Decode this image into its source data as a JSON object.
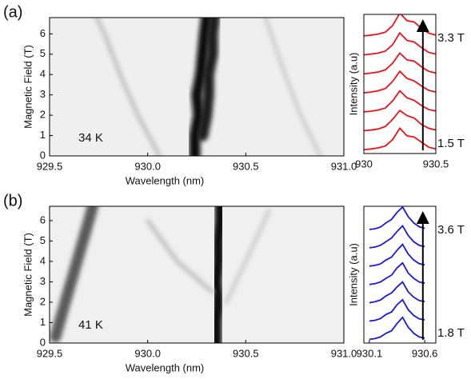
{
  "chart_data": [
    {
      "type": "heatmap",
      "panel_label": "(a)",
      "annotation": "34 K",
      "xlabel": "Wavelength (nm)",
      "ylabel": "Magnetic Field (T)",
      "xlim": [
        929.5,
        931.0
      ],
      "ylim": [
        0,
        6.8
      ],
      "xticks": [
        929.5,
        {
          "value": 930,
          "label": "930.0"
        },
        930.5,
        {
          "value": 931,
          "label": "931.0"
        }
      ],
      "yticks": [
        0,
        1,
        2,
        3,
        4,
        5,
        6
      ],
      "background": "#efefef",
      "traces": [
        {
          "color": "#0d0d0d",
          "y": [
            0,
            1,
            2,
            3,
            4,
            5,
            6,
            6.8
          ],
          "x": [
            930.24,
            930.24,
            930.26,
            930.25,
            930.27,
            930.28,
            930.29,
            930.3
          ]
        },
        {
          "color": "#1e1e1e",
          "y": [
            1,
            2,
            3,
            4,
            5,
            6,
            6.8
          ],
          "x": [
            930.28,
            930.3,
            930.31,
            930.31,
            930.33,
            930.33,
            930.34
          ]
        },
        {
          "color": "#bdbdbd",
          "y": [
            0,
            2,
            4,
            6,
            6.8
          ],
          "x": [
            930.06,
            929.95,
            929.86,
            929.78,
            929.74
          ]
        },
        {
          "color": "#cccccc",
          "y": [
            0,
            2,
            4,
            6,
            6.8
          ],
          "x": [
            930.88,
            930.78,
            930.7,
            930.63,
            930.6
          ]
        }
      ]
    },
    {
      "type": "spectra",
      "ylabel": "Intensity (a.u)",
      "annotations": [
        "3.3 T",
        "1.5 T"
      ],
      "xlim": [
        930,
        930.5
      ],
      "ylim": [
        0,
        5.5
      ],
      "xticks": [
        930,
        930.5
      ],
      "x": [
        930.0,
        930.05,
        930.1,
        930.15,
        930.2,
        930.25,
        930.3,
        930.35,
        930.4,
        930.45,
        930.5
      ],
      "series": [
        {
          "color": "#e8141a",
          "values": [
            0.05,
            0.08,
            0.12,
            0.2,
            0.45,
            0.9,
            0.6,
            0.55,
            0.35,
            0.15,
            0.08
          ]
        },
        {
          "color": "#e8141a",
          "values": [
            0.05,
            0.08,
            0.12,
            0.22,
            0.5,
            0.85,
            0.65,
            0.55,
            0.3,
            0.15,
            0.08
          ]
        },
        {
          "color": "#e8141a",
          "values": [
            0.05,
            0.07,
            0.12,
            0.2,
            0.48,
            0.88,
            0.6,
            0.5,
            0.3,
            0.14,
            0.08
          ]
        },
        {
          "color": "#e8141a",
          "values": [
            0.05,
            0.08,
            0.13,
            0.22,
            0.5,
            0.9,
            0.62,
            0.52,
            0.32,
            0.15,
            0.08
          ]
        },
        {
          "color": "#e8141a",
          "values": [
            0.05,
            0.08,
            0.12,
            0.21,
            0.47,
            0.87,
            0.6,
            0.55,
            0.33,
            0.15,
            0.08
          ]
        },
        {
          "color": "#e8141a",
          "values": [
            0.05,
            0.08,
            0.12,
            0.2,
            0.45,
            0.92,
            0.62,
            0.56,
            0.34,
            0.15,
            0.08
          ]
        },
        {
          "color": "#e8141a",
          "values": [
            0.05,
            0.08,
            0.12,
            0.2,
            0.46,
            0.95,
            0.65,
            0.6,
            0.35,
            0.16,
            0.08
          ]
        }
      ]
    },
    {
      "type": "heatmap",
      "panel_label": "(b)",
      "annotation": "41 K",
      "xlabel": "Wavelength (nm)",
      "ylabel": "Magnetic Field (T)",
      "xlim": [
        929.5,
        931.0
      ],
      "ylim": [
        0,
        6.7
      ],
      "xticks": [
        929.5,
        {
          "value": 930,
          "label": "930.0"
        },
        930.5,
        {
          "value": 931,
          "label": "931.0"
        }
      ],
      "yticks": [
        0,
        1,
        2,
        3,
        4,
        5,
        6
      ],
      "background": "#f0f0f0",
      "traces": [
        {
          "color": "#080808",
          "y": [
            0,
            1,
            2,
            3,
            4,
            5,
            6,
            6.7
          ],
          "x": [
            930.35,
            930.35,
            930.36,
            930.35,
            930.36,
            930.36,
            930.37,
            930.37
          ]
        },
        {
          "color": "#5a5a5a",
          "y": [
            0.3,
            2,
            4,
            6,
            6.7
          ],
          "x": [
            929.53,
            929.58,
            929.64,
            929.7,
            929.72
          ]
        },
        {
          "color": "#bdbdbd",
          "y": [
            2.5,
            4,
            6
          ],
          "x": [
            930.33,
            930.15,
            930.0
          ]
        },
        {
          "color": "#cccccc",
          "y": [
            2,
            4,
            6.5
          ],
          "x": [
            930.4,
            930.5,
            930.62
          ]
        }
      ]
    },
    {
      "type": "spectra",
      "ylabel": "Intensity (a.u)",
      "annotations": [
        "3.6 T",
        "1.8 T"
      ],
      "xlim": [
        930.05,
        930.7
      ],
      "ylim": [
        0,
        5.6
      ],
      "xticks": [
        930.1,
        930.6
      ],
      "x": [
        930.1,
        930.15,
        930.2,
        930.25,
        930.3,
        930.35,
        930.4,
        930.45,
        930.5,
        930.55,
        930.6
      ],
      "series": [
        {
          "color": "#1a1ad6",
          "values": [
            0.05,
            0.08,
            0.15,
            0.3,
            0.4,
            0.7,
            0.95,
            0.55,
            0.3,
            0.15,
            0.1
          ]
        },
        {
          "color": "#1a1ad6",
          "values": [
            0.05,
            0.08,
            0.15,
            0.32,
            0.42,
            0.72,
            0.92,
            0.52,
            0.28,
            0.14,
            0.1
          ]
        },
        {
          "color": "#1a1ad6",
          "values": [
            0.05,
            0.09,
            0.16,
            0.33,
            0.45,
            0.7,
            0.9,
            0.5,
            0.28,
            0.14,
            0.1
          ]
        },
        {
          "color": "#1a1ad6",
          "values": [
            0.05,
            0.08,
            0.15,
            0.3,
            0.43,
            0.73,
            0.93,
            0.52,
            0.3,
            0.15,
            0.1
          ]
        },
        {
          "color": "#1a1ad6",
          "values": [
            0.05,
            0.08,
            0.14,
            0.3,
            0.42,
            0.7,
            0.94,
            0.55,
            0.3,
            0.15,
            0.1
          ]
        },
        {
          "color": "#1a1ad6",
          "values": [
            0.05,
            0.08,
            0.15,
            0.3,
            0.45,
            0.72,
            0.95,
            0.56,
            0.3,
            0.15,
            0.1
          ]
        },
        {
          "color": "#1a1ad6",
          "values": [
            0.05,
            0.08,
            0.15,
            0.32,
            0.46,
            0.75,
            0.97,
            0.58,
            0.32,
            0.16,
            0.1
          ]
        }
      ]
    }
  ]
}
